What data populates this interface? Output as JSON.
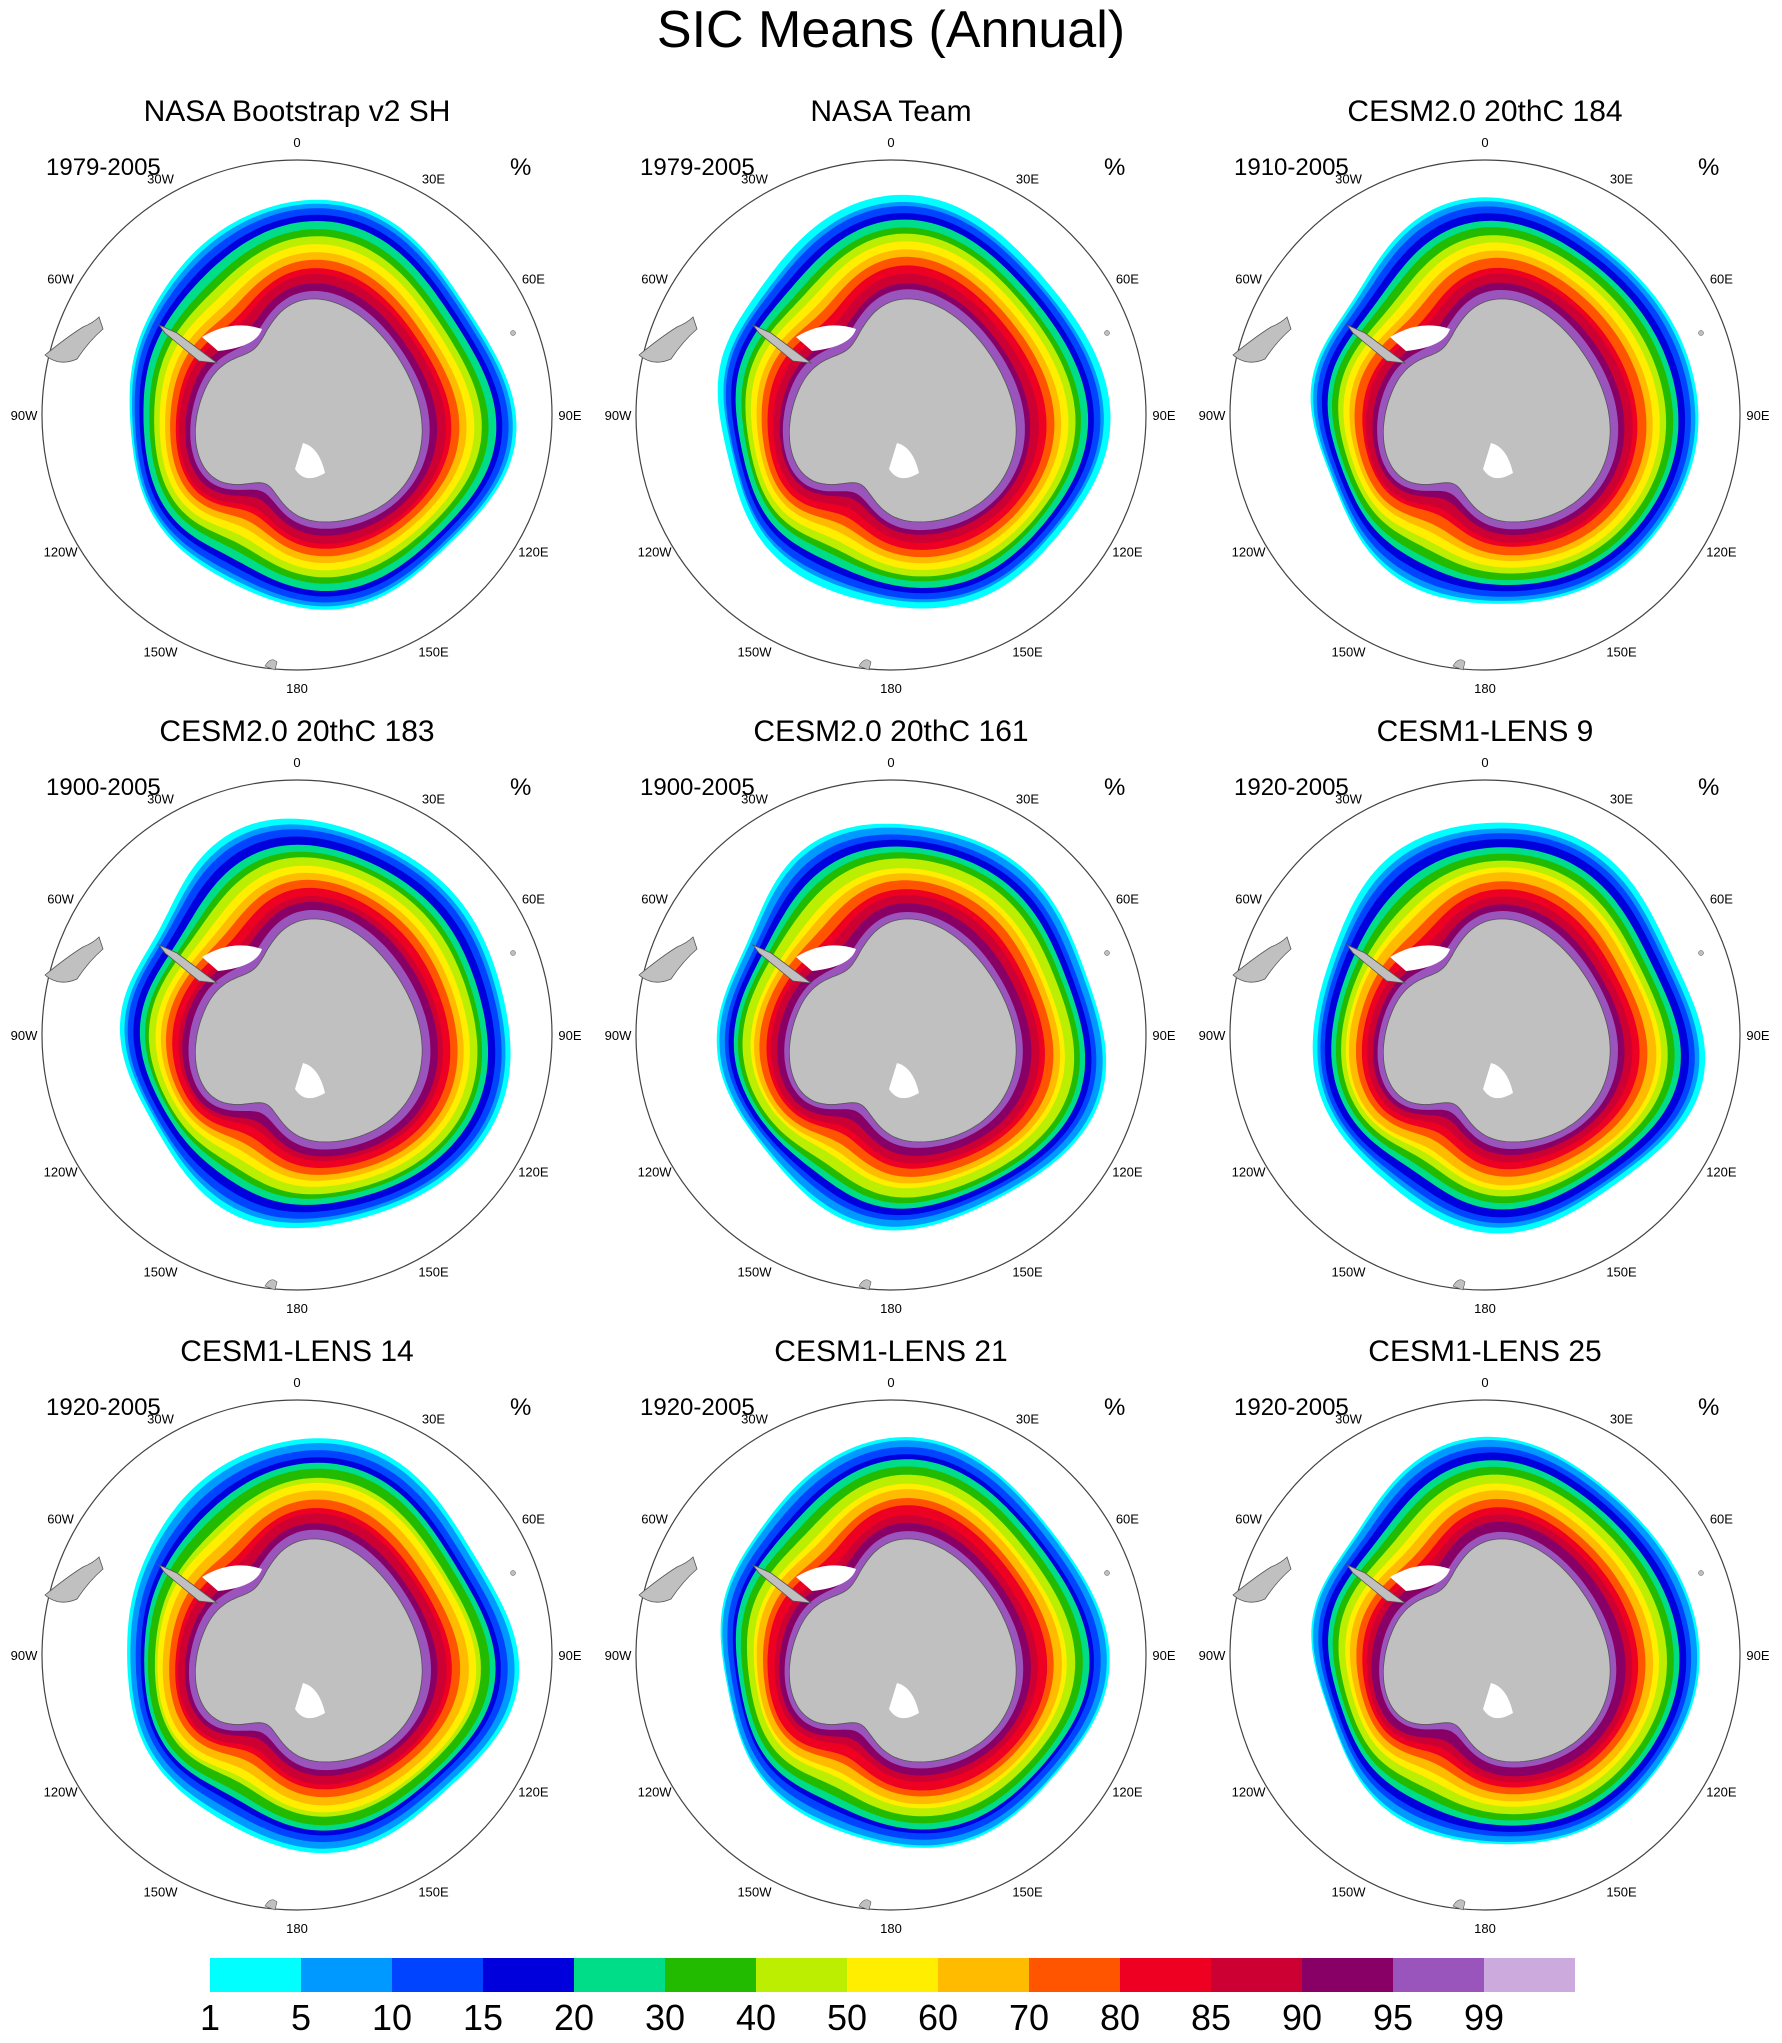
{
  "title": "SIC Means (Annual)",
  "colors": {
    "land": "#c0c0c0",
    "ocean": "#ffffff",
    "frame": "#444444"
  },
  "units": "%",
  "lon_labels": [
    "0",
    "30E",
    "60E",
    "90E",
    "120E",
    "150E",
    "180",
    "150W",
    "120W",
    "90W",
    "60W",
    "30W"
  ],
  "panels": [
    {
      "title": "NASA Bootstrap v2 SH",
      "period": "1979-2005",
      "units": "%"
    },
    {
      "title": "NASA Team",
      "period": "1979-2005",
      "units": "%"
    },
    {
      "title": "CESM2.0 20thC 184",
      "period": "1910-2005",
      "units": "%"
    },
    {
      "title": "CESM2.0 20thC 183",
      "period": "1900-2005",
      "units": "%"
    },
    {
      "title": "CESM2.0 20thC 161",
      "period": "1900-2005",
      "units": "%"
    },
    {
      "title": "CESM1-LENS 9",
      "period": "1920-2005",
      "units": "%"
    },
    {
      "title": "CESM1-LENS 14",
      "period": "1920-2005",
      "units": "%"
    },
    {
      "title": "CESM1-LENS 21",
      "period": "1920-2005",
      "units": "%"
    },
    {
      "title": "CESM1-LENS 25",
      "period": "1920-2005",
      "units": "%"
    }
  ],
  "chart_data": {
    "type": "heatmap",
    "projection": "south polar stereographic",
    "variable": "sea ice concentration",
    "colorbar": {
      "levels": [
        "1",
        "5",
        "10",
        "15",
        "20",
        "30",
        "40",
        "50",
        "60",
        "70",
        "80",
        "85",
        "90",
        "95",
        "99"
      ],
      "colors": [
        "#00ffff",
        "#0099ff",
        "#0044ff",
        "#0000dd",
        "#00dd88",
        "#22bb00",
        "#bbee00",
        "#ffee00",
        "#ffbb00",
        "#ff5500",
        "#ee0022",
        "#cc0033",
        "#880066",
        "#9955bb",
        "#ccaadd"
      ]
    }
  }
}
